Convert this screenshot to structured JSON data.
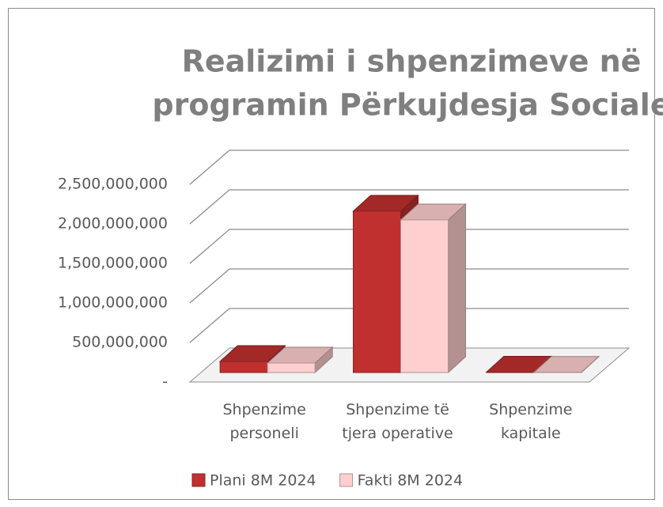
{
  "chart_data": {
    "type": "bar3d",
    "title": [
      "Realizimi i shpenzimeve në",
      "programin Përkujdesja Sociale"
    ],
    "categories": [
      "Shpenzime personeli",
      "Shpenzime të tjera operative",
      "Shpenzime kapitale"
    ],
    "series": [
      {
        "name": "Plani 8M 2024",
        "color": "#c0302f",
        "values": [
          140000000,
          2040000000,
          5000000
        ]
      },
      {
        "name": "Fakti 8M 2024",
        "color": "#ffcfcf",
        "values": [
          120000000,
          1930000000,
          3000000
        ]
      }
    ],
    "ylim": [
      0,
      2500000000
    ],
    "yticks": [
      {
        "value": 0,
        "label": "-"
      },
      {
        "value": 500000000,
        "label": "500,000,000"
      },
      {
        "value": 1000000000,
        "label": "1,000,000,000"
      },
      {
        "value": 1500000000,
        "label": "1,500,000,000"
      },
      {
        "value": 2000000000,
        "label": "2,000,000,000"
      },
      {
        "value": 2500000000,
        "label": "2,500,000,000"
      }
    ],
    "grid": true,
    "legend": "bottom"
  }
}
